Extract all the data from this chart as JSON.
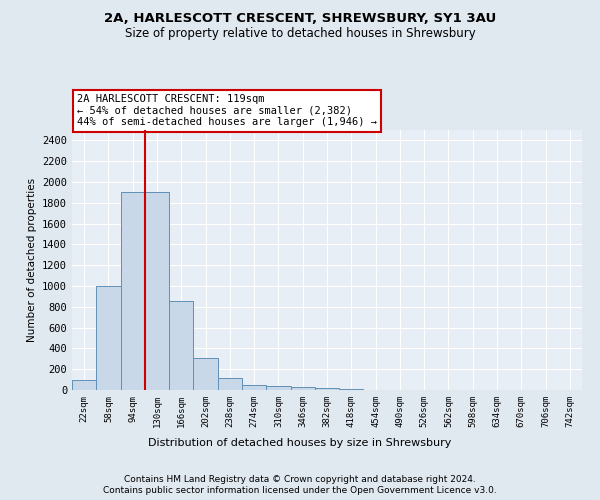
{
  "title1": "2A, HARLESCOTT CRESCENT, SHREWSBURY, SY1 3AU",
  "title2": "Size of property relative to detached houses in Shrewsbury",
  "xlabel": "Distribution of detached houses by size in Shrewsbury",
  "ylabel": "Number of detached properties",
  "footer1": "Contains HM Land Registry data © Crown copyright and database right 2024.",
  "footer2": "Contains public sector information licensed under the Open Government Licence v3.0.",
  "annotation_line1": "2A HARLESCOTT CRESCENT: 119sqm",
  "annotation_line2": "← 54% of detached houses are smaller (2,382)",
  "annotation_line3": "44% of semi-detached houses are larger (1,946) →",
  "bin_labels": [
    "22sqm",
    "58sqm",
    "94sqm",
    "130sqm",
    "166sqm",
    "202sqm",
    "238sqm",
    "274sqm",
    "310sqm",
    "346sqm",
    "382sqm",
    "418sqm",
    "454sqm",
    "490sqm",
    "526sqm",
    "562sqm",
    "598sqm",
    "634sqm",
    "670sqm",
    "706sqm",
    "742sqm"
  ],
  "bar_values": [
    100,
    1000,
    1900,
    1900,
    860,
    310,
    120,
    50,
    40,
    30,
    20,
    10,
    2,
    0,
    0,
    0,
    0,
    0,
    0,
    0,
    0
  ],
  "bar_color": "#c8d8e8",
  "bar_edge_color": "#6090b8",
  "red_line_x": 2.5,
  "ylim": [
    0,
    2500
  ],
  "yticks": [
    0,
    200,
    400,
    600,
    800,
    1000,
    1200,
    1400,
    1600,
    1800,
    2000,
    2200,
    2400
  ],
  "bg_color": "#e0e8f0",
  "plot_bg_color": "#e8eef5",
  "grid_color": "#ffffff",
  "annotation_box_color": "#cc0000",
  "red_line_color": "#cc0000"
}
